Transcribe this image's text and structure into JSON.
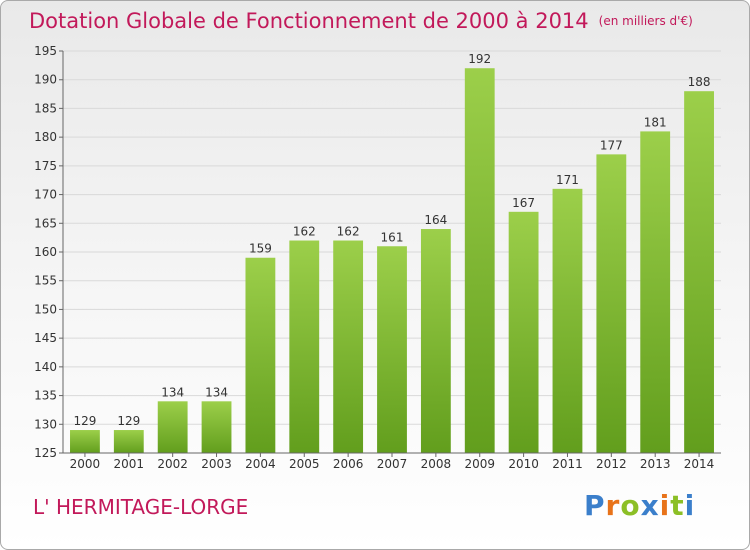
{
  "title": "Dotation Globale de Fonctionnement de 2000 à 2014",
  "unit_label": "(en milliers d'€)",
  "commune": "L' HERMITAGE-LORGE",
  "logo": {
    "text": "Proxiti",
    "letters": [
      "P",
      "r",
      "o",
      "x",
      "i",
      "t",
      "i"
    ],
    "colors": [
      "#3b7fcb",
      "#e8731a",
      "#8cbf26",
      "#3b7fcb",
      "#e8731a",
      "#8cbf26",
      "#3b7fcb"
    ]
  },
  "colors": {
    "title": "#c2195a",
    "bar_light": "#9ccf4a",
    "bar_dark": "#629e1d",
    "grid": "#d9d9d9"
  },
  "chart_data": {
    "type": "bar",
    "title": "Dotation Globale de Fonctionnement de 2000 à 2014",
    "xlabel": "",
    "ylabel": "",
    "categories": [
      "2000",
      "2001",
      "2002",
      "2003",
      "2004",
      "2005",
      "2006",
      "2007",
      "2008",
      "2009",
      "2010",
      "2011",
      "2012",
      "2013",
      "2014"
    ],
    "values": [
      129,
      129,
      134,
      134,
      159,
      162,
      162,
      161,
      164,
      192,
      167,
      171,
      177,
      181,
      188
    ],
    "ylim": [
      125,
      195
    ],
    "yticks": [
      125,
      130,
      135,
      140,
      145,
      150,
      155,
      160,
      165,
      170,
      175,
      180,
      185,
      190,
      195
    ],
    "grid": true,
    "legend": "none"
  }
}
